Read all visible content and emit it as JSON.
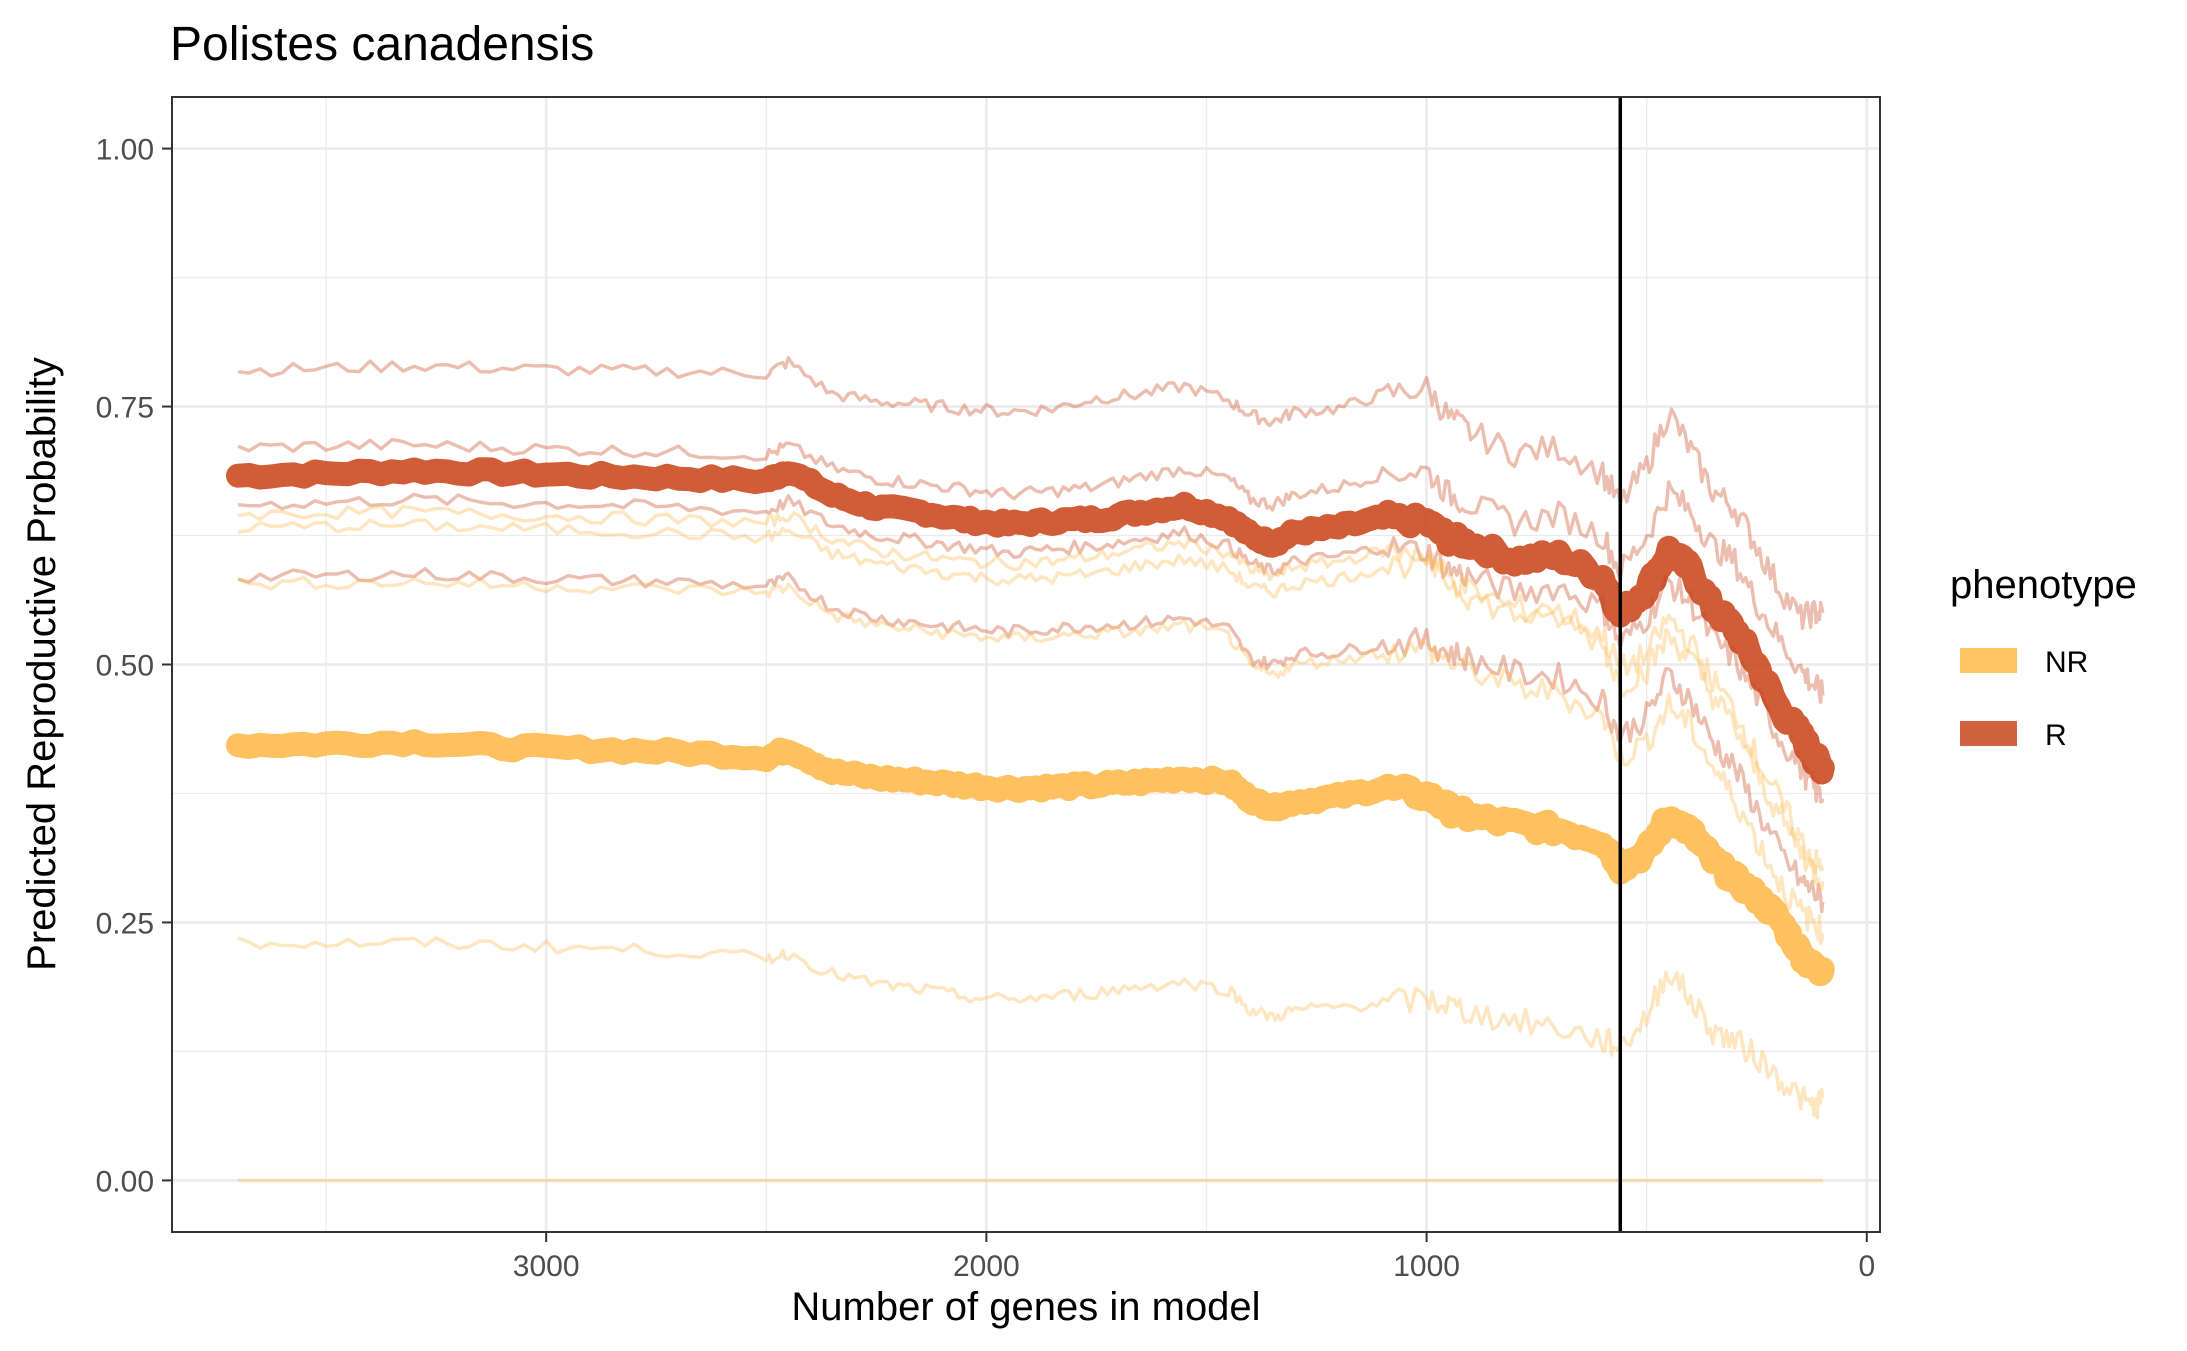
{
  "chart_data": {
    "type": "line",
    "title": "Polistes canadensis",
    "xlabel": "Number of genes in model",
    "ylabel": "Predicted Reproductive Probability",
    "x_reversed": true,
    "xlim": [
      3850,
      -30
    ],
    "ylim": [
      -0.05,
      1.05
    ],
    "x_ticks": [
      3000,
      2000,
      1000,
      0
    ],
    "x_tick_labels": [
      "3000",
      "2000",
      "1000",
      "0"
    ],
    "y_ticks": [
      0,
      0.25,
      0.5,
      0.75,
      1.0
    ],
    "y_tick_labels": [
      "0.00",
      "0.25",
      "0.50",
      "0.75",
      "1.00"
    ],
    "grid": true,
    "vline_x": 560,
    "legend": {
      "title": "phenotype",
      "position": "right",
      "entries": [
        {
          "label": "NR",
          "color": "#fdb84a"
        },
        {
          "label": "R",
          "color": "#c9461c"
        }
      ]
    },
    "x": [
      3700,
      3500,
      3300,
      3100,
      2900,
      2700,
      2500,
      2450,
      2350,
      2250,
      2150,
      2050,
      1950,
      1850,
      1750,
      1650,
      1550,
      1450,
      1400,
      1350,
      1300,
      1200,
      1100,
      1000,
      950,
      900,
      800,
      700,
      600,
      560,
      500,
      450,
      400,
      350,
      300,
      250,
      200,
      150,
      120,
      100
    ],
    "series": [
      {
        "name": "R",
        "role": "mean",
        "color": "#c9461c",
        "values": [
          0.683,
          0.685,
          0.688,
          0.686,
          0.683,
          0.681,
          0.678,
          0.688,
          0.664,
          0.652,
          0.648,
          0.64,
          0.636,
          0.639,
          0.641,
          0.648,
          0.654,
          0.642,
          0.625,
          0.617,
          0.628,
          0.633,
          0.642,
          0.638,
          0.622,
          0.617,
          0.601,
          0.605,
          0.585,
          0.548,
          0.574,
          0.61,
          0.592,
          0.555,
          0.535,
          0.5,
          0.458,
          0.432,
          0.41,
          0.4
        ]
      },
      {
        "name": "NR",
        "role": "mean",
        "color": "#fdb84a",
        "values": [
          0.422,
          0.423,
          0.425,
          0.42,
          0.418,
          0.415,
          0.41,
          0.418,
          0.396,
          0.39,
          0.387,
          0.383,
          0.38,
          0.381,
          0.383,
          0.386,
          0.39,
          0.386,
          0.369,
          0.361,
          0.367,
          0.372,
          0.38,
          0.373,
          0.36,
          0.352,
          0.345,
          0.34,
          0.33,
          0.304,
          0.318,
          0.353,
          0.338,
          0.31,
          0.292,
          0.275,
          0.254,
          0.22,
          0.205,
          0.205
        ]
      },
      {
        "name": "R",
        "role": "individual",
        "color": "#c9461c",
        "values": [
          0.785,
          0.787,
          0.79,
          0.787,
          0.785,
          0.784,
          0.782,
          0.793,
          0.762,
          0.755,
          0.752,
          0.748,
          0.745,
          0.748,
          0.758,
          0.762,
          0.77,
          0.756,
          0.742,
          0.735,
          0.745,
          0.748,
          0.762,
          0.768,
          0.74,
          0.725,
          0.705,
          0.71,
          0.685,
          0.655,
          0.692,
          0.745,
          0.708,
          0.668,
          0.652,
          0.615,
          0.575,
          0.545,
          0.55,
          0.55
        ]
      },
      {
        "name": "R",
        "role": "individual",
        "color": "#c9461c",
        "values": [
          0.71,
          0.712,
          0.713,
          0.71,
          0.708,
          0.706,
          0.703,
          0.712,
          0.69,
          0.68,
          0.675,
          0.67,
          0.665,
          0.668,
          0.672,
          0.682,
          0.69,
          0.68,
          0.66,
          0.655,
          0.665,
          0.672,
          0.685,
          0.688,
          0.665,
          0.655,
          0.638,
          0.645,
          0.625,
          0.59,
          0.625,
          0.668,
          0.648,
          0.615,
          0.6,
          0.56,
          0.525,
          0.495,
          0.48,
          0.47
        ]
      },
      {
        "name": "R",
        "role": "individual",
        "color": "#c9461c",
        "values": [
          0.655,
          0.657,
          0.66,
          0.657,
          0.655,
          0.652,
          0.648,
          0.658,
          0.635,
          0.625,
          0.62,
          0.614,
          0.608,
          0.612,
          0.615,
          0.622,
          0.628,
          0.615,
          0.598,
          0.59,
          0.6,
          0.605,
          0.614,
          0.61,
          0.592,
          0.585,
          0.57,
          0.575,
          0.555,
          0.52,
          0.545,
          0.58,
          0.56,
          0.525,
          0.505,
          0.47,
          0.43,
          0.4,
          0.38,
          0.37
        ]
      },
      {
        "name": "R",
        "role": "individual",
        "color": "#c9461c",
        "values": [
          0.585,
          0.586,
          0.588,
          0.585,
          0.582,
          0.58,
          0.576,
          0.583,
          0.555,
          0.545,
          0.54,
          0.535,
          0.532,
          0.535,
          0.538,
          0.54,
          0.545,
          0.535,
          0.505,
          0.5,
          0.51,
          0.512,
          0.52,
          0.522,
          0.512,
          0.505,
          0.492,
          0.488,
          0.465,
          0.43,
          0.45,
          0.49,
          0.465,
          0.425,
          0.4,
          0.36,
          0.32,
          0.29,
          0.28,
          0.27
        ]
      },
      {
        "name": "NR",
        "role": "individual",
        "color": "#fdb84a",
        "values": [
          0.645,
          0.647,
          0.648,
          0.645,
          0.643,
          0.64,
          0.637,
          0.645,
          0.622,
          0.61,
          0.605,
          0.6,
          0.598,
          0.6,
          0.605,
          0.612,
          0.618,
          0.608,
          0.592,
          0.585,
          0.595,
          0.6,
          0.61,
          0.605,
          0.585,
          0.572,
          0.555,
          0.55,
          0.53,
          0.495,
          0.51,
          0.545,
          0.52,
          0.485,
          0.455,
          0.41,
          0.37,
          0.33,
          0.31,
          0.3
        ]
      },
      {
        "name": "NR",
        "role": "individual",
        "color": "#fdb84a",
        "values": [
          0.632,
          0.634,
          0.635,
          0.632,
          0.63,
          0.627,
          0.623,
          0.63,
          0.607,
          0.598,
          0.592,
          0.586,
          0.582,
          0.584,
          0.588,
          0.596,
          0.602,
          0.592,
          0.575,
          0.57,
          0.578,
          0.583,
          0.594,
          0.6,
          0.58,
          0.565,
          0.548,
          0.545,
          0.52,
          0.48,
          0.495,
          0.528,
          0.505,
          0.47,
          0.44,
          0.395,
          0.355,
          0.32,
          0.3,
          0.29
        ]
      },
      {
        "name": "NR",
        "role": "individual",
        "color": "#fdb84a",
        "values": [
          0.578,
          0.579,
          0.58,
          0.577,
          0.575,
          0.573,
          0.57,
          0.575,
          0.548,
          0.538,
          0.533,
          0.528,
          0.525,
          0.527,
          0.53,
          0.532,
          0.538,
          0.528,
          0.498,
          0.49,
          0.5,
          0.505,
          0.512,
          0.515,
          0.503,
          0.495,
          0.478,
          0.472,
          0.45,
          0.41,
          0.425,
          0.46,
          0.44,
          0.4,
          0.37,
          0.33,
          0.29,
          0.26,
          0.25,
          0.24
        ]
      },
      {
        "name": "NR",
        "role": "individual",
        "color": "#fdb84a",
        "values": [
          0.23,
          0.23,
          0.23,
          0.228,
          0.225,
          0.222,
          0.215,
          0.22,
          0.2,
          0.19,
          0.185,
          0.178,
          0.175,
          0.178,
          0.182,
          0.188,
          0.192,
          0.185,
          0.165,
          0.158,
          0.165,
          0.168,
          0.172,
          0.175,
          0.17,
          0.162,
          0.155,
          0.148,
          0.135,
          0.13,
          0.158,
          0.205,
          0.175,
          0.145,
          0.135,
          0.12,
          0.1,
          0.08,
          0.07,
          0.08
        ]
      },
      {
        "name": "NR",
        "role": "individual",
        "color": "#fdb84a",
        "values": [
          0.0,
          0.0,
          0.0,
          0.0,
          0.0,
          0.0,
          0.0,
          0.0,
          0.0,
          0.0,
          0.0,
          0.0,
          0.0,
          0.0,
          0.0,
          0.0,
          0.0,
          0.0,
          0.0,
          0.0,
          0.0,
          0.0,
          0.0,
          0.0,
          0.0,
          0.0,
          0.0,
          0.0,
          0.0,
          0.0,
          0.0,
          0.0,
          0.0,
          0.0,
          0.0,
          0.0,
          0.0,
          0.0,
          0.0,
          0.0
        ]
      }
    ]
  }
}
